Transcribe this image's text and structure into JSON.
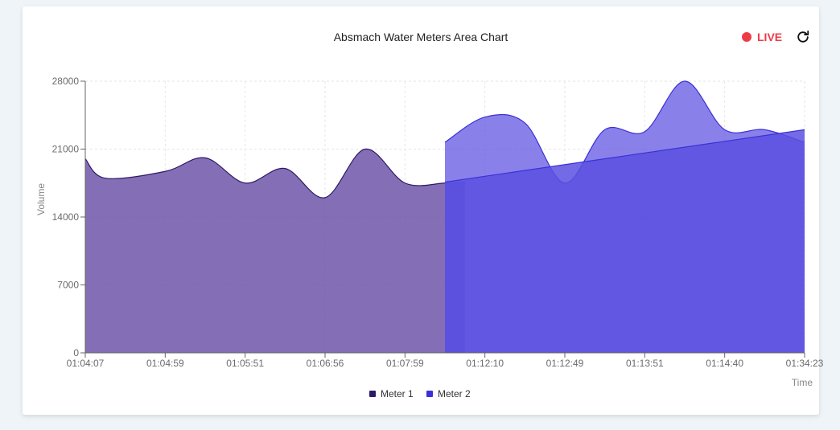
{
  "header": {
    "title": "Absmach Water Meters Area Chart",
    "live_label": "LIVE",
    "refresh_icon": "refresh-icon"
  },
  "colors": {
    "meter1": "#2e1b66",
    "meter1_fill": "#6f55a8",
    "meter2": "#3a31d8",
    "meter2_fill": "#5b50e0",
    "live": "#ef3b48"
  },
  "chart_data": {
    "type": "area",
    "title": "Absmach Water Meters Area Chart",
    "xlabel": "Time",
    "ylabel": "Volume",
    "ylim": [
      0,
      28000
    ],
    "yticks": [
      0,
      7000,
      14000,
      21000,
      28000
    ],
    "x_ticks": [
      "01:04:07",
      "01:04:59",
      "01:05:51",
      "01:06:56",
      "01:07:59",
      "01:12:10",
      "01:12:49",
      "01:13:51",
      "01:14:40",
      "01:34:23"
    ],
    "grid": true,
    "legend": "bottom",
    "series": [
      {
        "name": "Meter 1",
        "x": [
          0,
          0.25,
          1,
          1.5,
          2,
          2.5,
          3,
          3.5,
          4,
          4.5,
          4.75
        ],
        "values": [
          20000,
          18000,
          18700,
          20100,
          17500,
          19000,
          16000,
          21000,
          17500,
          17500,
          17600
        ]
      },
      {
        "name": "Meter 2",
        "x": [
          4.5,
          5,
          5.5,
          6,
          6.5,
          7,
          7.5,
          8,
          8.5,
          9
        ],
        "values": [
          21700,
          24300,
          23700,
          17500,
          23000,
          22800,
          28000,
          23000,
          23000,
          21700
        ]
      },
      {
        "name": "Meter 2",
        "x": [
          4.5,
          9
        ],
        "values": [
          17600,
          23000
        ]
      }
    ]
  }
}
